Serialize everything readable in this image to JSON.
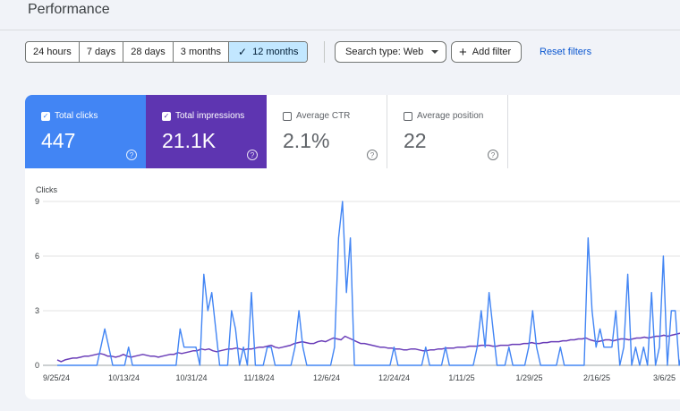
{
  "header": {
    "title": "Performance"
  },
  "date_range": {
    "options": [
      "24 hours",
      "7 days",
      "28 days",
      "3 months",
      "12 months"
    ],
    "selected": "12 months"
  },
  "filters": {
    "search_type": "Search type: Web",
    "add_filter": "Add filter",
    "reset": "Reset filters"
  },
  "metrics": [
    {
      "label": "Total clicks",
      "value": "447",
      "checked": true,
      "color": "#4285f4"
    },
    {
      "label": "Total impressions",
      "value": "21.1K",
      "checked": true,
      "color": "#5e35b1"
    },
    {
      "label": "Average CTR",
      "value": "2.1%",
      "checked": false
    },
    {
      "label": "Average position",
      "value": "22",
      "checked": false
    }
  ],
  "chart_data": {
    "type": "line",
    "ylabel": "Clicks",
    "ylim": [
      0,
      9
    ],
    "yticks": [
      "0",
      "3",
      "6",
      "9"
    ],
    "xticks": [
      "9/25/24",
      "10/13/24",
      "10/31/24",
      "11/18/24",
      "12/6/24",
      "12/24/24",
      "1/11/25",
      "1/29/25",
      "2/16/25",
      "3/6/25"
    ],
    "grid": true,
    "series": [
      {
        "name": "Total clicks",
        "color": "#4285f4",
        "values": [
          0,
          0,
          0,
          0,
          0,
          0,
          0,
          0,
          0,
          0,
          0,
          1,
          2,
          1,
          0,
          0,
          0,
          0,
          1,
          0,
          0,
          0,
          0,
          0,
          0,
          0,
          0,
          0,
          0,
          0,
          0,
          2,
          1,
          1,
          1,
          1,
          0,
          5,
          3,
          4,
          2,
          0,
          0,
          0,
          3,
          2,
          0,
          1,
          0,
          4,
          0,
          0,
          0,
          1,
          1,
          0,
          0,
          0,
          0,
          0,
          1,
          3,
          1,
          0,
          0,
          0,
          0,
          0,
          0,
          0,
          1,
          7,
          9,
          4,
          7,
          0,
          0,
          0,
          0,
          0,
          0,
          0,
          0,
          0,
          0,
          1,
          0,
          0,
          0,
          0,
          0,
          0,
          0,
          1,
          0,
          0,
          0,
          0,
          1,
          0,
          0,
          0,
          0,
          0,
          0,
          0,
          1,
          3,
          1,
          4,
          2,
          0,
          0,
          0,
          1,
          0,
          0,
          0,
          0,
          1,
          3,
          1,
          0,
          0,
          0,
          0,
          0,
          1,
          0,
          0,
          0,
          0,
          0,
          0,
          7,
          3,
          1,
          2,
          1,
          1,
          1,
          3,
          0,
          1,
          5,
          0,
          1,
          0,
          1,
          0,
          4,
          0,
          1,
          6,
          0,
          3,
          3,
          0,
          1,
          2
        ]
      },
      {
        "name": "Total impressions",
        "color": "#6a3db8",
        "values": [
          0.3,
          0.2,
          0.3,
          0.35,
          0.4,
          0.4,
          0.45,
          0.5,
          0.5,
          0.55,
          0.6,
          0.65,
          0.6,
          0.5,
          0.5,
          0.45,
          0.5,
          0.6,
          0.5,
          0.45,
          0.5,
          0.55,
          0.6,
          0.55,
          0.5,
          0.5,
          0.45,
          0.5,
          0.55,
          0.6,
          0.6,
          0.7,
          0.65,
          0.7,
          0.75,
          0.8,
          0.8,
          0.9,
          0.85,
          0.9,
          0.8,
          0.75,
          0.8,
          0.85,
          0.9,
          0.9,
          0.95,
          0.9,
          0.85,
          0.9,
          0.9,
          0.95,
          1.0,
          1.0,
          1.05,
          1.1,
          1.0,
          0.95,
          1.0,
          1.05,
          1.1,
          1.2,
          1.25,
          1.3,
          1.25,
          1.2,
          1.2,
          1.3,
          1.35,
          1.3,
          1.4,
          1.5,
          1.45,
          1.4,
          1.6,
          1.5,
          1.4,
          1.3,
          1.2,
          1.2,
          1.15,
          1.1,
          1.05,
          1.0,
          1.0,
          0.95,
          0.95,
          0.9,
          0.9,
          0.85,
          0.85,
          0.9,
          0.9,
          0.85,
          0.8,
          0.8,
          0.85,
          0.85,
          0.9,
          0.9,
          0.95,
          0.95,
          0.95,
          1.0,
          1.0,
          1.0,
          1.05,
          1.05,
          1.05,
          1.1,
          1.1,
          1.1,
          1.05,
          1.05,
          1.1,
          1.1,
          1.1,
          1.15,
          1.15,
          1.15,
          1.2,
          1.2,
          1.25,
          1.2,
          1.2,
          1.25,
          1.25,
          1.3,
          1.3,
          1.3,
          1.35,
          1.35,
          1.4,
          1.4,
          1.45,
          1.45,
          1.5,
          1.4,
          1.35,
          1.3,
          1.35,
          1.4,
          1.4,
          1.35,
          1.4,
          1.45,
          1.45,
          1.4,
          1.45,
          1.5,
          1.5,
          1.55,
          1.5,
          1.55,
          1.6,
          1.6,
          1.65,
          1.6,
          1.65,
          1.7,
          1.75,
          1.8,
          1.7
        ]
      }
    ]
  }
}
